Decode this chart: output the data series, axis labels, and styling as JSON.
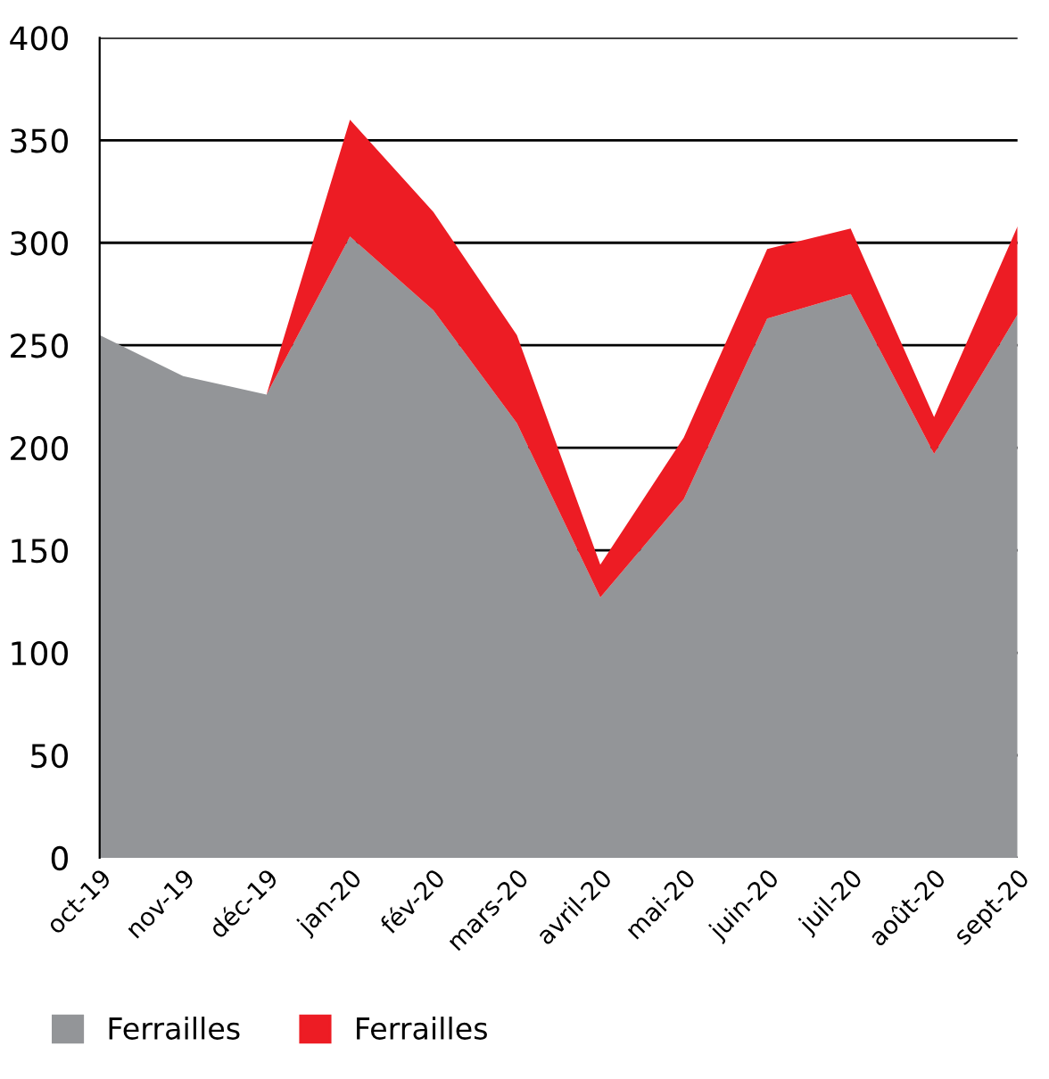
{
  "chart_data": {
    "type": "area",
    "stacked": true,
    "categories": [
      "oct-19",
      "nov-19",
      "déc-19",
      "jan-20",
      "fév-20",
      "mars-20",
      "avril-20",
      "mai-20",
      "juin-20",
      "juil-20",
      "août-20",
      "sept-20"
    ],
    "series": [
      {
        "name": "Ferrailles",
        "color": "#939598",
        "values": [
          255,
          235,
          226,
          303,
          267,
          212,
          127,
          175,
          263,
          275,
          197,
          265
        ]
      },
      {
        "name": "Ferrailles",
        "color": "#ed1c24",
        "values": [
          0,
          0,
          0,
          57,
          48,
          43,
          16,
          30,
          34,
          32,
          18,
          43
        ]
      }
    ],
    "ylim": [
      0,
      400
    ],
    "yticks": [
      0,
      50,
      100,
      150,
      200,
      250,
      300,
      350,
      400
    ],
    "grid": "y",
    "legend": "bottom"
  }
}
